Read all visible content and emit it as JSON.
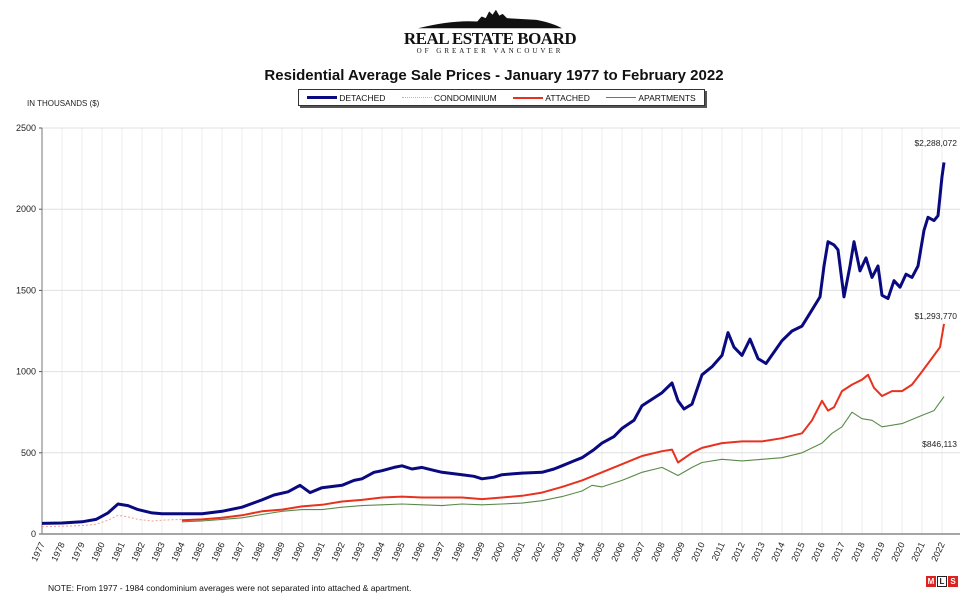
{
  "logo": {
    "name": "REAL ESTATE BOARD",
    "subtitle": "OF GREATER VANCOUVER"
  },
  "note": "NOTE:  From 1977 - 1984 condominium averages were not separated into attached & apartment.",
  "mls_logo": "MLS",
  "chart_data": {
    "type": "line",
    "title": "Residential Average Sale Prices  -  January 1977 to February 2022",
    "ylabel": "IN THOUSANDS ($)",
    "xlabel": "",
    "ylim": [
      0,
      2500
    ],
    "yticks": [
      0,
      500,
      1000,
      1500,
      2000,
      2500
    ],
    "xlim": [
      1977,
      2022.1
    ],
    "xticks": [
      "1977",
      "1978",
      "1979",
      "1980",
      "1981",
      "1982",
      "1983",
      "1984",
      "1985",
      "1986",
      "1987",
      "1988",
      "1989",
      "1990",
      "1991",
      "1992",
      "1993",
      "1994",
      "1995",
      "1996",
      "1997",
      "1998",
      "1999",
      "2000",
      "2001",
      "2002",
      "2003",
      "2004",
      "2005",
      "2006",
      "2007",
      "2008",
      "2009",
      "2010",
      "2011",
      "2012",
      "2013",
      "2014",
      "2015",
      "2016",
      "2017",
      "2018",
      "2019",
      "2020",
      "2021",
      "2022"
    ],
    "grid": true,
    "legend_position": "top-center",
    "series": [
      {
        "name": "DETACHED",
        "color": "#0a0a80",
        "style": "solid-thick",
        "x": [
          1977,
          1978,
          1979,
          1979.7,
          1980.3,
          1980.8,
          1981.3,
          1981.8,
          1982.5,
          1983,
          1984,
          1985,
          1986,
          1987,
          1988,
          1988.6,
          1989.3,
          1989.9,
          1990.4,
          1991,
          1992,
          1992.6,
          1993,
          1993.6,
          1994,
          1994.6,
          1995,
          1995.5,
          1996,
          1996.5,
          1997,
          1998,
          1998.6,
          1999,
          1999.6,
          2000,
          2000.5,
          2001,
          2002,
          2002.6,
          2003,
          2003.6,
          2004,
          2004.6,
          2005,
          2005.6,
          2006,
          2006.6,
          2007,
          2007.5,
          2008,
          2008.5,
          2008.8,
          2009.1,
          2009.5,
          2010,
          2010.5,
          2011,
          2011.3,
          2011.6,
          2012,
          2012.4,
          2012.8,
          2013.2,
          2013.6,
          2014,
          2014.5,
          2015,
          2015.5,
          2015.9,
          2016.1,
          2016.3,
          2016.6,
          2016.8,
          2017.1,
          2017.4,
          2017.6,
          2017.9,
          2018.2,
          2018.5,
          2018.8,
          2019,
          2019.3,
          2019.6,
          2019.9,
          2020.2,
          2020.5,
          2020.8,
          2021.1,
          2021.3,
          2021.6,
          2021.8,
          2022,
          2022.1
        ],
        "values": [
          65,
          68,
          75,
          90,
          130,
          185,
          175,
          150,
          130,
          125,
          125,
          125,
          140,
          165,
          210,
          240,
          260,
          300,
          255,
          285,
          300,
          330,
          340,
          380,
          390,
          410,
          420,
          400,
          410,
          395,
          380,
          365,
          355,
          340,
          350,
          365,
          370,
          375,
          380,
          400,
          420,
          450,
          470,
          520,
          560,
          600,
          650,
          700,
          790,
          830,
          870,
          930,
          820,
          770,
          800,
          980,
          1030,
          1100,
          1240,
          1150,
          1100,
          1200,
          1080,
          1050,
          1120,
          1190,
          1250,
          1280,
          1380,
          1460,
          1650,
          1800,
          1780,
          1750,
          1460,
          1650,
          1800,
          1620,
          1700,
          1580,
          1650,
          1470,
          1450,
          1560,
          1520,
          1600,
          1580,
          1650,
          1870,
          1950,
          1930,
          1960,
          2200,
          2288
        ]
      },
      {
        "name": "CONDOMINIUM",
        "color": "#f0a090",
        "style": "dotted",
        "x": [
          1977,
          1978,
          1979,
          1979.7,
          1980.3,
          1980.8,
          1981.3,
          1981.8,
          1982.5,
          1983,
          1983.6,
          1984
        ],
        "values": [
          45,
          48,
          52,
          60,
          85,
          115,
          105,
          90,
          80,
          85,
          88,
          90
        ]
      },
      {
        "name": "ATTACHED",
        "color": "#e8321e",
        "style": "solid",
        "x": [
          1984,
          1985,
          1986,
          1987,
          1988,
          1989,
          1990,
          1991,
          1992,
          1993,
          1994,
          1995,
          1996,
          1997,
          1998,
          1999,
          2000,
          2001,
          2002,
          2003,
          2004,
          2005,
          2006,
          2007,
          2008,
          2008.5,
          2008.8,
          2009.5,
          2010,
          2011,
          2012,
          2013,
          2014,
          2015,
          2015.5,
          2016,
          2016.3,
          2016.6,
          2017,
          2017.5,
          2018,
          2018.3,
          2018.6,
          2019,
          2019.5,
          2020,
          2020.5,
          2021,
          2021.3,
          2021.6,
          2021.9,
          2022.1
        ],
        "values": [
          85,
          90,
          100,
          115,
          140,
          150,
          170,
          180,
          200,
          210,
          225,
          230,
          225,
          225,
          225,
          215,
          225,
          235,
          255,
          290,
          330,
          380,
          430,
          480,
          510,
          520,
          440,
          500,
          530,
          560,
          570,
          570,
          590,
          620,
          700,
          820,
          760,
          780,
          880,
          920,
          950,
          980,
          900,
          850,
          880,
          880,
          920,
          1000,
          1050,
          1100,
          1150,
          1294
        ]
      },
      {
        "name": "APARTMENTS",
        "color": "#5a8a4a",
        "style": "solid-thin",
        "x": [
          1984,
          1985,
          1986,
          1987,
          1988,
          1989,
          1990,
          1991,
          1992,
          1993,
          1994,
          1995,
          1996,
          1997,
          1998,
          1999,
          2000,
          2001,
          2002,
          2003,
          2004,
          2004.5,
          2005,
          2006,
          2007,
          2008,
          2008.8,
          2009.5,
          2010,
          2011,
          2012,
          2013,
          2014,
          2015,
          2016,
          2016.5,
          2017,
          2017.5,
          2018,
          2018.5,
          2019,
          2020,
          2021,
          2021.6,
          2022.1
        ],
        "values": [
          75,
          80,
          90,
          100,
          120,
          140,
          150,
          150,
          165,
          175,
          180,
          185,
          180,
          175,
          185,
          180,
          185,
          190,
          205,
          230,
          265,
          300,
          290,
          330,
          380,
          410,
          360,
          410,
          440,
          460,
          450,
          460,
          470,
          500,
          560,
          620,
          660,
          750,
          710,
          700,
          660,
          680,
          730,
          760,
          846
        ]
      }
    ],
    "annotations": [
      {
        "text": "$2,288,072",
        "series": "DETACHED"
      },
      {
        "text": "$1,293,770",
        "series": "ATTACHED"
      },
      {
        "text": "$846,113",
        "series": "APARTMENTS"
      }
    ]
  }
}
